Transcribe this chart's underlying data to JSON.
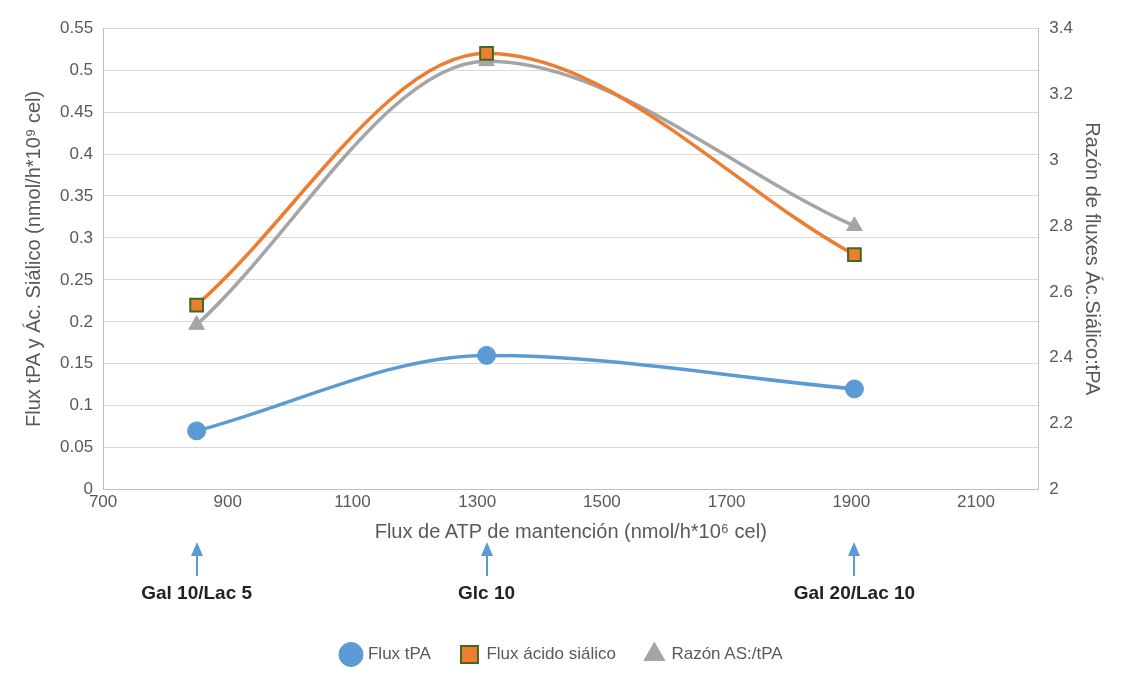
{
  "chart_data": {
    "type": "line",
    "xlabel": "Flux de ATP de mantención (nmol/h*10⁶ cel)",
    "ylabel": "Flux tPA y Ác. Siálico (nmol/h*10⁹ cel)",
    "y2label": "Razón de fluxes Ác.Siálico:tPA",
    "x": [
      850,
      1315,
      1905
    ],
    "series": [
      {
        "name": "Flux tPA",
        "color": "#5b9bd5",
        "values": [
          0.07,
          0.16,
          0.12
        ],
        "marker": "circle"
      },
      {
        "name": "Flux ácido siálico",
        "color": "#ed7d31",
        "values": [
          0.22,
          0.52,
          0.28
        ],
        "marker": "square"
      },
      {
        "name": "Razón AS:/tPA",
        "color": "#a5a5a5",
        "values": [
          2.5,
          3.3,
          2.8
        ],
        "marker": "triangle",
        "axis": "y2"
      }
    ],
    "xlim": [
      700,
      2200
    ],
    "xticks": [
      700,
      900,
      1100,
      1300,
      1500,
      1700,
      1900,
      2100
    ],
    "ylim": [
      0,
      0.55
    ],
    "yticks": [
      0,
      0.05,
      0.1,
      0.15,
      0.2,
      0.25,
      0.3,
      0.35,
      0.4,
      0.45,
      0.5,
      0.55
    ],
    "y2lim": [
      2,
      3.4
    ],
    "y2ticks": [
      2,
      2.2,
      2.4,
      2.6,
      2.8,
      3,
      3.2,
      3.4
    ],
    "grid": "y",
    "legend": "bottom",
    "line_style": "solid",
    "annotations": [
      "Gal 10/Lac 5",
      "Glc 10",
      "Gal 20/Lac 10"
    ]
  }
}
